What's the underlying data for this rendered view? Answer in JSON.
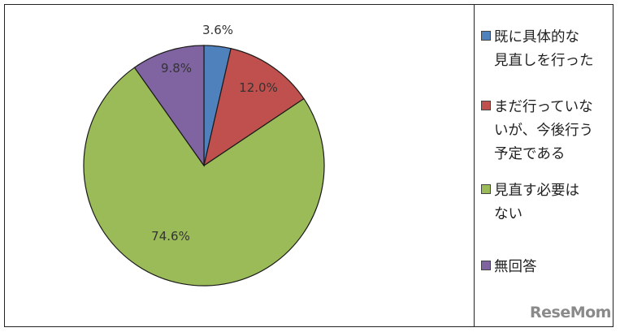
{
  "chart_data": {
    "type": "pie",
    "categories": [
      "既に具体的な見直しを行った",
      "まだ行っていないが、今後行う予定である",
      "見直す必要はない",
      "無回答"
    ],
    "values": [
      3.6,
      12.0,
      74.6,
      9.8
    ],
    "data_labels": [
      "3.6%",
      "12.0%",
      "74.6%",
      "9.8%"
    ],
    "colors": [
      "#4F81BD",
      "#C0504D",
      "#9BBB59",
      "#8064A2"
    ],
    "legend_position": "right",
    "legend": [
      {
        "label": "既に具体的な\n見直しを行った",
        "color": "#4F81BD"
      },
      {
        "label": "まだ行っていな\nいが、今後行う\n予定である",
        "color": "#C0504D"
      },
      {
        "label": "見直す必要は\nない",
        "color": "#9BBB59"
      },
      {
        "label": "無回答",
        "color": "#8064A2"
      }
    ]
  },
  "watermark": "ReseMom"
}
